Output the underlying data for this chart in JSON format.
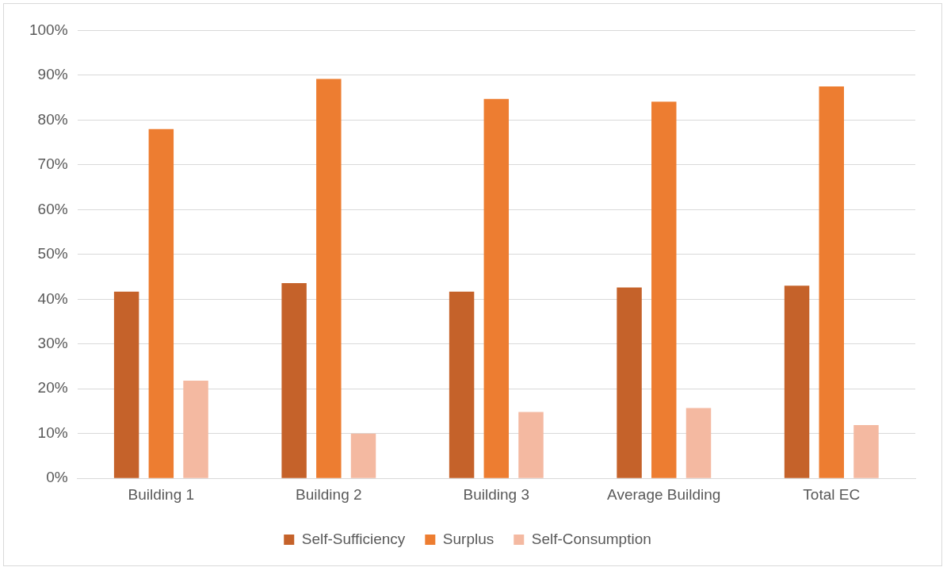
{
  "chart_data": {
    "type": "bar",
    "categories": [
      "Building 1",
      "Building 2",
      "Building 3",
      "Average Building",
      "Total EC"
    ],
    "series": [
      {
        "name": "Self-Sufficiency",
        "color": "#c5622a",
        "values": [
          41.7,
          43.6,
          41.7,
          42.6,
          43.0
        ]
      },
      {
        "name": "Surplus",
        "color": "#ed7d31",
        "values": [
          78.0,
          89.2,
          84.7,
          84.1,
          87.5
        ]
      },
      {
        "name": "Self-Consumption",
        "color": "#f4b9a1",
        "values": [
          21.8,
          10.0,
          14.8,
          15.7,
          11.9
        ]
      }
    ],
    "ylim": [
      0,
      100
    ],
    "yticks": [
      {
        "value": 0,
        "label": "0%"
      },
      {
        "value": 10,
        "label": "10%"
      },
      {
        "value": 20,
        "label": "20%"
      },
      {
        "value": 30,
        "label": "30%"
      },
      {
        "value": 40,
        "label": "40%"
      },
      {
        "value": 50,
        "label": "50%"
      },
      {
        "value": 60,
        "label": "60%"
      },
      {
        "value": 70,
        "label": "70%"
      },
      {
        "value": 80,
        "label": "80%"
      },
      {
        "value": 90,
        "label": "90%"
      },
      {
        "value": 100,
        "label": "100%"
      }
    ],
    "grid": "y",
    "legend": "bottom"
  }
}
